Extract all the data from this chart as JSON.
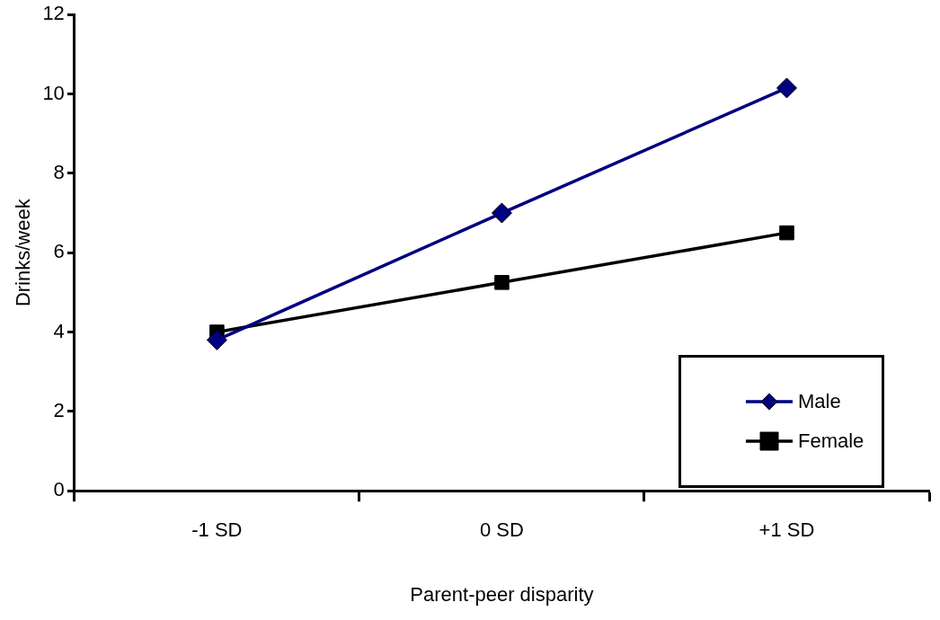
{
  "chart_data": {
    "type": "line",
    "xlabel": "Parent-peer disparity",
    "ylabel": "Drinks/week",
    "categories": [
      "-1 SD",
      "0 SD",
      "+1 SD"
    ],
    "series": [
      {
        "name": "Male",
        "color": "#000080",
        "marker": "diamond",
        "values": [
          3.8,
          7.0,
          10.15
        ]
      },
      {
        "name": "Female",
        "color": "#000000",
        "marker": "square",
        "values": [
          4.0,
          5.25,
          6.5
        ]
      }
    ],
    "ylim": [
      0,
      12
    ],
    "yticks": [
      0,
      2,
      4,
      6,
      8,
      10,
      12
    ],
    "grid": false,
    "legend": "bottom right"
  }
}
